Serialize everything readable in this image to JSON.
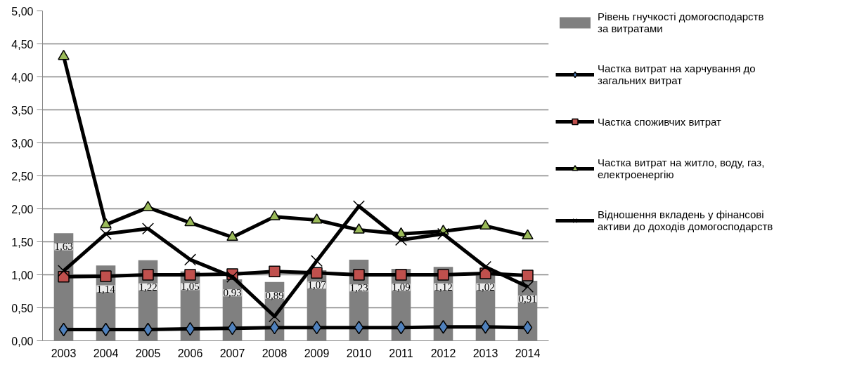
{
  "chart_data": {
    "type": "line",
    "categories": [
      "2003",
      "2004",
      "2005",
      "2006",
      "2007",
      "2008",
      "2009",
      "2010",
      "2011",
      "2012",
      "2013",
      "2014"
    ],
    "ylim": [
      0,
      5
    ],
    "yticks": [
      {
        "value": 0,
        "label": "0,00"
      },
      {
        "value": 0.5,
        "label": "0,50"
      },
      {
        "value": 1,
        "label": "1,00"
      },
      {
        "value": 1.5,
        "label": "1,50"
      },
      {
        "value": 2,
        "label": "2,00"
      },
      {
        "value": 2.5,
        "label": "2,50"
      },
      {
        "value": 3,
        "label": "3,00"
      },
      {
        "value": 3.5,
        "label": "3,50"
      },
      {
        "value": 4,
        "label": "4,00"
      },
      {
        "value": 4.5,
        "label": "4,50"
      },
      {
        "value": 5,
        "label": "5,00"
      }
    ],
    "grid": "y",
    "legend": "right",
    "series": [
      {
        "type": "bar",
        "name": "Рівень гнучкості домогосподарств за витратами",
        "color": "#808080",
        "values": [
          1.63,
          1.14,
          1.22,
          1.05,
          0.93,
          0.89,
          1.07,
          1.23,
          1.09,
          1.12,
          1.02,
          0.91
        ],
        "value_labels": [
          "1,63",
          "1,14",
          "1,22",
          "1,05",
          "0,93",
          "0,89",
          "1,07",
          "1,23",
          "1,09",
          "1,12",
          "1,02",
          "0,91"
        ]
      },
      {
        "name": "Частка витрат на харчування до загальних витрат",
        "color": "#4f81bd",
        "marker": "diamond",
        "values": [
          0.17,
          0.17,
          0.17,
          0.18,
          0.19,
          0.2,
          0.2,
          0.2,
          0.2,
          0.21,
          0.21,
          0.2
        ]
      },
      {
        "name": "Частка споживчих витрат",
        "color": "#c0504d",
        "marker": "square",
        "values": [
          0.97,
          0.98,
          1.0,
          1.0,
          1.01,
          1.05,
          1.03,
          1.0,
          1.0,
          1.0,
          1.02,
          0.99
        ]
      },
      {
        "name": "Частка витрат на житло, воду, газ, електроенергію",
        "color": "#9bbb59",
        "marker": "triangle",
        "values": [
          4.31,
          1.76,
          2.02,
          1.79,
          1.57,
          1.88,
          1.83,
          1.68,
          1.62,
          1.66,
          1.74,
          1.59
        ]
      },
      {
        "name": "Відношення вкладень у фінансові активи до доходів домогосподарств",
        "color": "#000000",
        "marker": "cross",
        "values": [
          1.06,
          1.62,
          1.7,
          1.23,
          0.97,
          0.37,
          1.21,
          2.04,
          1.53,
          1.62,
          1.12,
          0.82
        ]
      }
    ]
  }
}
